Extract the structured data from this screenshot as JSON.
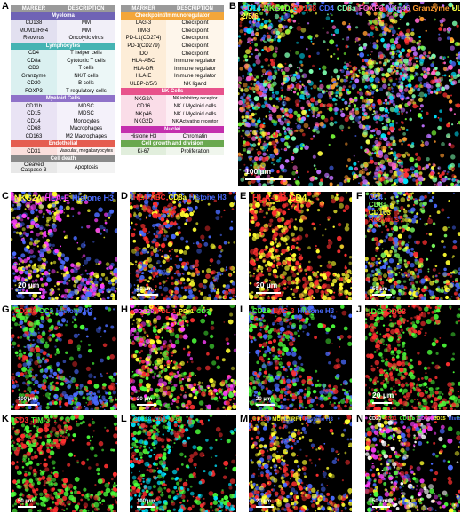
{
  "panels": {
    "A": "A",
    "B": "B",
    "C": "C",
    "D": "D",
    "E": "E",
    "F": "F",
    "G": "G",
    "H": "H",
    "I": "I",
    "J": "J",
    "K": "K",
    "L": "L",
    "M": "M",
    "N": "N"
  },
  "table_left": {
    "header": [
      "MARKER",
      "DESCRIPTION"
    ],
    "sections": [
      {
        "title": "Myeloma",
        "color": "#6f63b5",
        "rows": [
          [
            "CD138",
            "MM"
          ],
          [
            "MUM1/IRF4",
            "MM"
          ],
          [
            "Reovirus",
            "Oncolytic virus"
          ]
        ]
      },
      {
        "title": "Lymphocytes",
        "color": "#45b3b3",
        "rows": [
          [
            "CD4",
            "T helper cells"
          ],
          [
            "CD8a",
            "Cytotoxic T cells"
          ],
          [
            "CD3",
            "T cells"
          ],
          [
            "Granzyme",
            "NK/T cells"
          ],
          [
            "CD20",
            "B cells"
          ],
          [
            "FOXP3",
            "T regulatory cells"
          ]
        ]
      },
      {
        "title": "Myeloid Cells",
        "color": "#8f72c9",
        "rows": [
          [
            "CD11b",
            "MDSC"
          ],
          [
            "CD15",
            "MDSC"
          ],
          [
            "CD14",
            "Monocytes"
          ],
          [
            "CD68",
            "Macrophages"
          ],
          [
            "CD163",
            "M2 Macrophages"
          ]
        ]
      },
      {
        "title": "Endothelial",
        "color": "#e55d50",
        "rows": [
          [
            "CD31",
            "Vascular, megakaryocytes"
          ]
        ]
      },
      {
        "title": "Cell death",
        "color": "#8a8a8a",
        "rows": [
          [
            "Cleaved Caspase-3",
            "Apoptosis"
          ]
        ]
      }
    ]
  },
  "table_right": {
    "header": [
      "MARKER",
      "DESCRIPTION"
    ],
    "sections": [
      {
        "title": "Checkpoint/Immunoregulator",
        "color": "#f3a63a",
        "rows": [
          [
            "LAG-3",
            "Checkpoint"
          ],
          [
            "TIM-3",
            "Checkpoint"
          ],
          [
            "PD-L1(CD274)",
            "Checkpoint"
          ],
          [
            "PD-1(CD279)",
            "Checkpoint"
          ],
          [
            "IDO",
            "Checkpoint"
          ],
          [
            "HLA-ABC",
            "Immune regulator"
          ],
          [
            "HLA-DR",
            "Immune regulator"
          ],
          [
            "HLA-E",
            "Immune regulator"
          ],
          [
            "ULBP-2/5/6",
            "NK ligand"
          ]
        ]
      },
      {
        "title": "NK Cells",
        "color": "#e8538c",
        "rows": [
          [
            "NKG2A",
            "NK inhibitory receptor"
          ],
          [
            "CD16",
            "NK / Myeloid cells"
          ],
          [
            "NKp46",
            "NK / Myeloid cells"
          ],
          [
            "NKG2D",
            "NK Activating receptor"
          ]
        ]
      },
      {
        "title": "Nuclei",
        "color": "#c42fae",
        "rows": [
          [
            "Histone H3",
            "Chromatin"
          ]
        ]
      },
      {
        "title": "Cell growth and division",
        "color": "#6aa84f",
        "rows": [
          [
            "Ki-67",
            "Proliferation"
          ]
        ]
      }
    ]
  },
  "panel_B": {
    "legend": [
      {
        "text": "CD14",
        "color": "#00e5ff"
      },
      {
        "text": "NKG2D",
        "color": "#7cff3a"
      },
      {
        "text": "CD138",
        "color": "#ff3030"
      },
      {
        "text": "CD4",
        "color": "#4a6bff"
      },
      {
        "text": "CD8a",
        "color": "#7dffb0"
      },
      {
        "text": "FOXP3",
        "color": "#ff66cc"
      },
      {
        "text": "NKp46",
        "color": "#c070ff"
      },
      {
        "text": "Granzyme",
        "color": "#ff9a2e"
      },
      {
        "text": "ULBP-2/5/6",
        "color": "#ffff40"
      }
    ],
    "scale": "100 µm"
  },
  "panel_C": {
    "legend": [
      {
        "text": "NKG2A",
        "color": "#ffff30"
      },
      {
        "text": "HLA-E",
        "color": "#ff40ff"
      },
      {
        "text": "Histone H3",
        "color": "#4a6bff"
      }
    ],
    "scale": "20 µm"
  },
  "panel_D": {
    "legend": [
      {
        "text": "HLA-ABC",
        "color": "#ff3030"
      },
      {
        "text": "CD8a",
        "color": "#ffff30"
      },
      {
        "text": "Histone H3",
        "color": "#4a6bff"
      }
    ],
    "scale": "20 µm"
  },
  "panel_E": {
    "legend": [
      {
        "text": "HLA-DR",
        "color": "#ff3030"
      },
      {
        "text": "CD4",
        "color": "#ffff30"
      }
    ],
    "scale": "20 µm"
  },
  "panel_F": {
    "legend": [
      {
        "text": "CD4",
        "color": "#4a6bff"
      },
      {
        "text": "CD8a",
        "color": "#7dff60"
      },
      {
        "text": "CD163",
        "color": "#ffff30"
      },
      {
        "text": "Reovirus",
        "color": "#ff3030"
      }
    ],
    "scale": "50 µm"
  },
  "panel_G": {
    "legend": [
      {
        "text": "CD138",
        "color": "#ff3030"
      },
      {
        "text": "CC3",
        "color": "#4cff3a"
      },
      {
        "text": "Histone H3",
        "color": "#4a6bff"
      }
    ],
    "scale": "100 µm"
  },
  "panel_H": {
    "legend": [
      {
        "text": "CD138",
        "color": "#ff40ff"
      },
      {
        "text": "PDL-1",
        "color": "#ff3030"
      },
      {
        "text": "PD-1",
        "color": "#ffff30"
      },
      {
        "text": "CD3",
        "color": "#4cff3a"
      }
    ],
    "scale": "20 µm"
  },
  "panel_I": {
    "legend": [
      {
        "text": "CD16",
        "color": "#4cff3a"
      },
      {
        "text": "LAG-3",
        "color": "#ff3030"
      },
      {
        "text": "Histone H3",
        "color": "#4a6bff"
      }
    ],
    "scale": "20 µm"
  },
  "panel_J": {
    "legend": [
      {
        "text": "IDO",
        "color": "#4cff3a"
      },
      {
        "text": "CD68",
        "color": "#ff3030"
      }
    ],
    "scale": "20 µm"
  },
  "panel_K": {
    "legend": [
      {
        "text": "CD3",
        "color": "#ff3030"
      },
      {
        "text": "TIM-3",
        "color": "#4cff3a"
      }
    ],
    "scale": "50 µm"
  },
  "panel_L": {
    "legend": [
      {
        "text": "CD138",
        "color": "#00e5ff"
      },
      {
        "text": "CD3",
        "color": "#ff3030"
      },
      {
        "text": "Ki-67",
        "color": "#4cff3a"
      }
    ],
    "scale": "100 µm"
  },
  "panel_M": {
    "legend": [
      {
        "text": "CD138",
        "color": "#ff3030"
      },
      {
        "text": "MUM1/IRF4",
        "color": "#ffff30"
      },
      {
        "text": "Histone H3",
        "color": "#4a6bff"
      }
    ],
    "scale": "20 µm"
  },
  "panel_N": {
    "legend": [
      {
        "text": "CD20",
        "color": "#ffffff"
      },
      {
        "text": "CD31",
        "color": "#ff3030"
      },
      {
        "text": "CD11b",
        "color": "#4cff3a"
      },
      {
        "text": "CD68",
        "color": "#ff40ff"
      },
      {
        "text": "CD15",
        "color": "#ffff30"
      },
      {
        "text": "Histone H3",
        "color": "#4a6bff"
      }
    ],
    "scale": "50 µm"
  }
}
